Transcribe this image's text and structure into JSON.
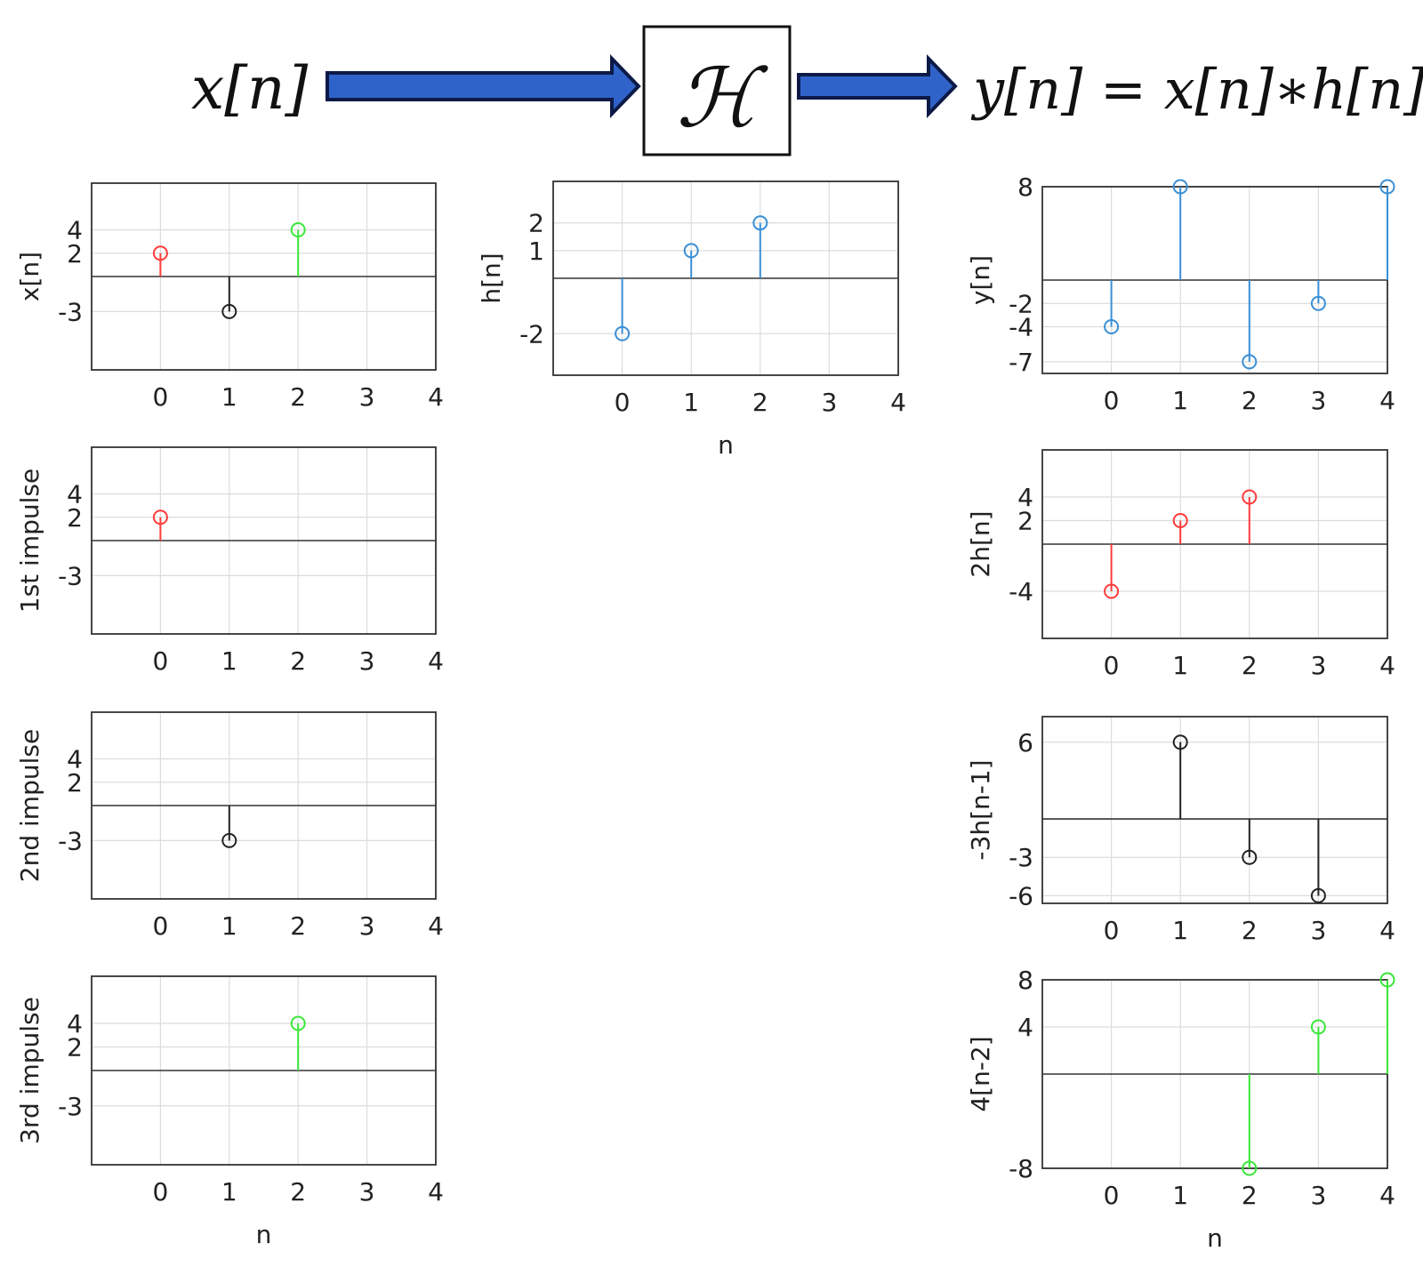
{
  "header": {
    "input_label": "x[n]",
    "system_label": "ℋ",
    "output_label": "y[n] = x[n]∗h[n]",
    "arrow_color": "#2f63c9",
    "arrow_outline": "#0d1a47"
  },
  "chart_data": [
    {
      "id": "x",
      "type": "stem",
      "ylabel": "x[n]",
      "xlabel": "",
      "xlim": [
        -1,
        4
      ],
      "ylim": [
        -8,
        8
      ],
      "xticks": [
        0,
        1,
        2,
        3,
        4
      ],
      "yticks": [
        -3,
        2,
        4
      ],
      "grid": true,
      "points": [
        {
          "x": 0,
          "y": 2,
          "color": "#ff3b3b"
        },
        {
          "x": 1,
          "y": -3,
          "color": "#222222"
        },
        {
          "x": 2,
          "y": 4,
          "color": "#39e639"
        }
      ]
    },
    {
      "id": "h",
      "type": "stem",
      "ylabel": "h[n]",
      "xlabel": "n",
      "xlim": [
        -1,
        4
      ],
      "ylim": [
        -3.5,
        3.5
      ],
      "xticks": [
        0,
        1,
        2,
        3,
        4
      ],
      "yticks": [
        -2,
        1,
        2
      ],
      "grid": true,
      "points": [
        {
          "x": 0,
          "y": -2,
          "color": "#3a8fd6"
        },
        {
          "x": 1,
          "y": 1,
          "color": "#3a8fd6"
        },
        {
          "x": 2,
          "y": 2,
          "color": "#3a8fd6"
        }
      ]
    },
    {
      "id": "y",
      "type": "stem",
      "ylabel": "y[n]",
      "xlabel": "",
      "xlim": [
        -1,
        4
      ],
      "ylim": [
        -8,
        8
      ],
      "xticks": [
        0,
        1,
        2,
        3,
        4
      ],
      "yticks": [
        -7,
        -4,
        -2,
        8
      ],
      "grid": true,
      "points": [
        {
          "x": 0,
          "y": -4,
          "color": "#3a8fd6"
        },
        {
          "x": 1,
          "y": 8,
          "color": "#3a8fd6"
        },
        {
          "x": 2,
          "y": -7,
          "color": "#3a8fd6"
        },
        {
          "x": 3,
          "y": -2,
          "color": "#3a8fd6"
        },
        {
          "x": 4,
          "y": 8,
          "color": "#3a8fd6"
        }
      ]
    },
    {
      "id": "imp1",
      "type": "stem",
      "ylabel": "1st impulse",
      "xlabel": "",
      "xlim": [
        -1,
        4
      ],
      "ylim": [
        -8,
        8
      ],
      "xticks": [
        0,
        1,
        2,
        3,
        4
      ],
      "yticks": [
        -3,
        2,
        4
      ],
      "grid": true,
      "points": [
        {
          "x": 0,
          "y": 2,
          "color": "#ff3b3b"
        }
      ]
    },
    {
      "id": "h2",
      "type": "stem",
      "ylabel": "2h[n]",
      "xlabel": "",
      "xlim": [
        -1,
        4
      ],
      "ylim": [
        -8,
        8
      ],
      "xticks": [
        0,
        1,
        2,
        3,
        4
      ],
      "yticks": [
        -4,
        2,
        4
      ],
      "grid": true,
      "points": [
        {
          "x": 0,
          "y": -4,
          "color": "#ff3b3b"
        },
        {
          "x": 1,
          "y": 2,
          "color": "#ff3b3b"
        },
        {
          "x": 2,
          "y": 4,
          "color": "#ff3b3b"
        }
      ]
    },
    {
      "id": "imp2",
      "type": "stem",
      "ylabel": "2nd impulse",
      "xlabel": "",
      "xlim": [
        -1,
        4
      ],
      "ylim": [
        -8,
        8
      ],
      "xticks": [
        0,
        1,
        2,
        3,
        4
      ],
      "yticks": [
        -3,
        2,
        4
      ],
      "grid": true,
      "points": [
        {
          "x": 1,
          "y": -3,
          "color": "#222222"
        }
      ]
    },
    {
      "id": "h3",
      "type": "stem",
      "ylabel": "-3h[n-1]",
      "xlabel": "",
      "xlim": [
        -1,
        4
      ],
      "ylim": [
        -6.6,
        8
      ],
      "xticks": [
        0,
        1,
        2,
        3,
        4
      ],
      "yticks": [
        -6,
        -3,
        6
      ],
      "grid": true,
      "points": [
        {
          "x": 1,
          "y": 6,
          "color": "#222222"
        },
        {
          "x": 2,
          "y": -3,
          "color": "#222222"
        },
        {
          "x": 3,
          "y": -6,
          "color": "#222222"
        }
      ]
    },
    {
      "id": "imp3",
      "type": "stem",
      "ylabel": "3rd impulse",
      "xlabel": "n",
      "xlim": [
        -1,
        4
      ],
      "ylim": [
        -8,
        8
      ],
      "xticks": [
        0,
        1,
        2,
        3,
        4
      ],
      "yticks": [
        -3,
        2,
        4
      ],
      "grid": true,
      "points": [
        {
          "x": 2,
          "y": 4,
          "color": "#39e639"
        }
      ]
    },
    {
      "id": "h4",
      "type": "stem",
      "ylabel": "4[n-2]",
      "xlabel": "n",
      "xlim": [
        -1,
        4
      ],
      "ylim": [
        -8,
        8
      ],
      "xticks": [
        0,
        1,
        2,
        3,
        4
      ],
      "yticks": [
        -8,
        4,
        8
      ],
      "grid": true,
      "points": [
        {
          "x": 2,
          "y": -8,
          "color": "#39e639"
        },
        {
          "x": 3,
          "y": 4,
          "color": "#39e639"
        },
        {
          "x": 4,
          "y": 8,
          "color": "#39e639"
        }
      ]
    }
  ]
}
